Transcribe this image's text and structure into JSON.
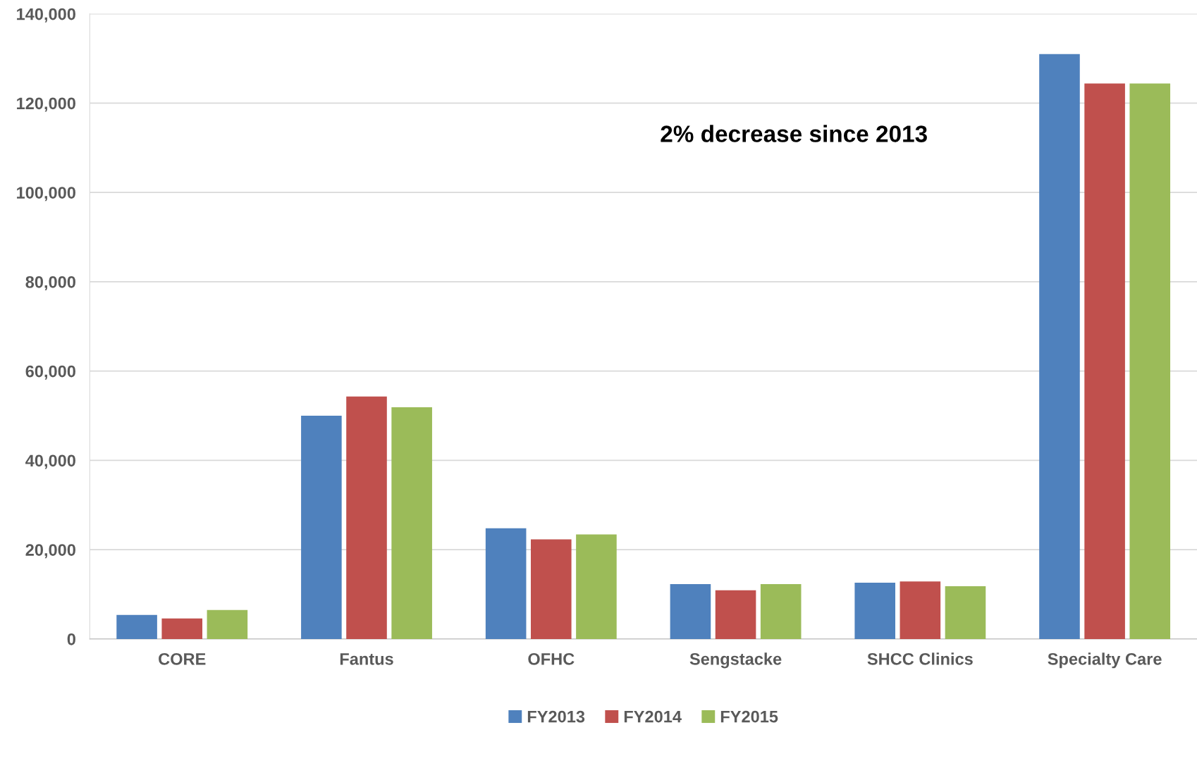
{
  "chart_data": {
    "type": "bar",
    "categories": [
      "CORE",
      "Fantus",
      "OFHC",
      "Sengstacke",
      "SHCC Clinics",
      "Specialty Care"
    ],
    "series": [
      {
        "name": "FY2013",
        "color": "#4f81bd",
        "values": [
          5400,
          50000,
          24800,
          12300,
          12600,
          131000
        ]
      },
      {
        "name": "FY2014",
        "color": "#c0504d",
        "values": [
          4600,
          54300,
          22300,
          10900,
          12900,
          124400
        ]
      },
      {
        "name": "FY2015",
        "color": "#9bbb59",
        "values": [
          6500,
          51900,
          23400,
          12300,
          11800,
          124400
        ]
      }
    ],
    "ylim": [
      0,
      140000
    ],
    "yticks": [
      {
        "value": 0,
        "label": "0"
      },
      {
        "value": 20000,
        "label": "20,000"
      },
      {
        "value": 40000,
        "label": "40,000"
      },
      {
        "value": 60000,
        "label": "60,000"
      },
      {
        "value": 80000,
        "label": "80,000"
      },
      {
        "value": 100000,
        "label": "100,000"
      },
      {
        "value": 120000,
        "label": "120,000"
      },
      {
        "value": 140000,
        "label": "140,000"
      }
    ],
    "grid": "y",
    "legend": "bottom",
    "annotations": [
      "2% decrease since 2013"
    ]
  }
}
